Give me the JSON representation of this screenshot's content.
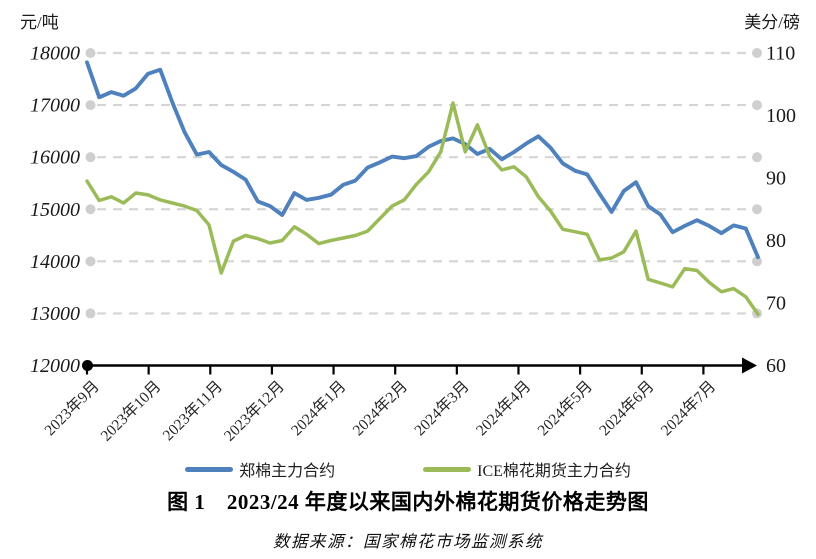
{
  "figure": {
    "caption": "图 1　2023/24 年度以来国内外棉花期货价格走势图",
    "source": "数据来源：国家棉花市场监测系统"
  },
  "chart_data": {
    "type": "line",
    "title": "图 1　2023/24 年度以来国内外棉花期货价格走势图",
    "grid": true,
    "legend_position": "bottom",
    "x_tick_labels": [
      "2023年9月",
      "2023年10月",
      "2023年11月",
      "2023年12月",
      "2024年1月",
      "2024年2月",
      "2024年3月",
      "2024年4月",
      "2024年5月",
      "2024年6月",
      "2024年7月"
    ],
    "left_axis": {
      "label": "元/吨",
      "min": 12000,
      "max": 18000,
      "ticks": [
        18000,
        17000,
        16000,
        15000,
        14000,
        13000,
        12000
      ]
    },
    "right_axis": {
      "label": "美分/磅",
      "min": 60,
      "max": 110,
      "ticks": [
        110,
        100,
        90,
        80,
        70,
        60
      ]
    },
    "colors": {
      "grid": "#d6d6d6",
      "grid_dot": "#cfcfcf",
      "axis": "#000000"
    },
    "series": [
      {
        "name": "郑棉主力合约",
        "axis": "left",
        "unit": "元/吨",
        "color": "#4F81BD",
        "values": [
          17820,
          17150,
          17250,
          17180,
          17320,
          17600,
          17680,
          17050,
          16480,
          16050,
          16100,
          15850,
          15720,
          15570,
          15150,
          15060,
          14890,
          15310,
          15180,
          15220,
          15280,
          15470,
          15550,
          15800,
          15900,
          16010,
          15980,
          16020,
          16200,
          16310,
          16360,
          16250,
          16060,
          16160,
          15960,
          16100,
          16260,
          16400,
          16180,
          15880,
          15740,
          15670,
          15300,
          14950,
          15350,
          15520,
          15060,
          14900,
          14560,
          14680,
          14790,
          14680,
          14540,
          14690,
          14630,
          14080
        ]
      },
      {
        "name": "ICE棉花期货主力合约",
        "axis": "right",
        "unit": "美分/磅",
        "color": "#9BBB59",
        "values": [
          89.5,
          86.4,
          87.0,
          86.0,
          87.6,
          87.3,
          86.5,
          86.0,
          85.5,
          84.8,
          82.5,
          74.8,
          79.9,
          80.8,
          80.3,
          79.6,
          80.0,
          82.2,
          81.0,
          79.5,
          80.0,
          80.4,
          80.8,
          81.5,
          83.5,
          85.5,
          86.5,
          89.0,
          91.0,
          94.2,
          102.0,
          94.2,
          98.5,
          93.5,
          91.3,
          91.8,
          90.2,
          87.0,
          84.7,
          81.8,
          81.4,
          81.0,
          76.9,
          77.2,
          78.2,
          81.5,
          73.8,
          73.2,
          72.6,
          75.5,
          75.2,
          73.3,
          71.8,
          72.3,
          71.0,
          68.2
        ]
      }
    ]
  }
}
